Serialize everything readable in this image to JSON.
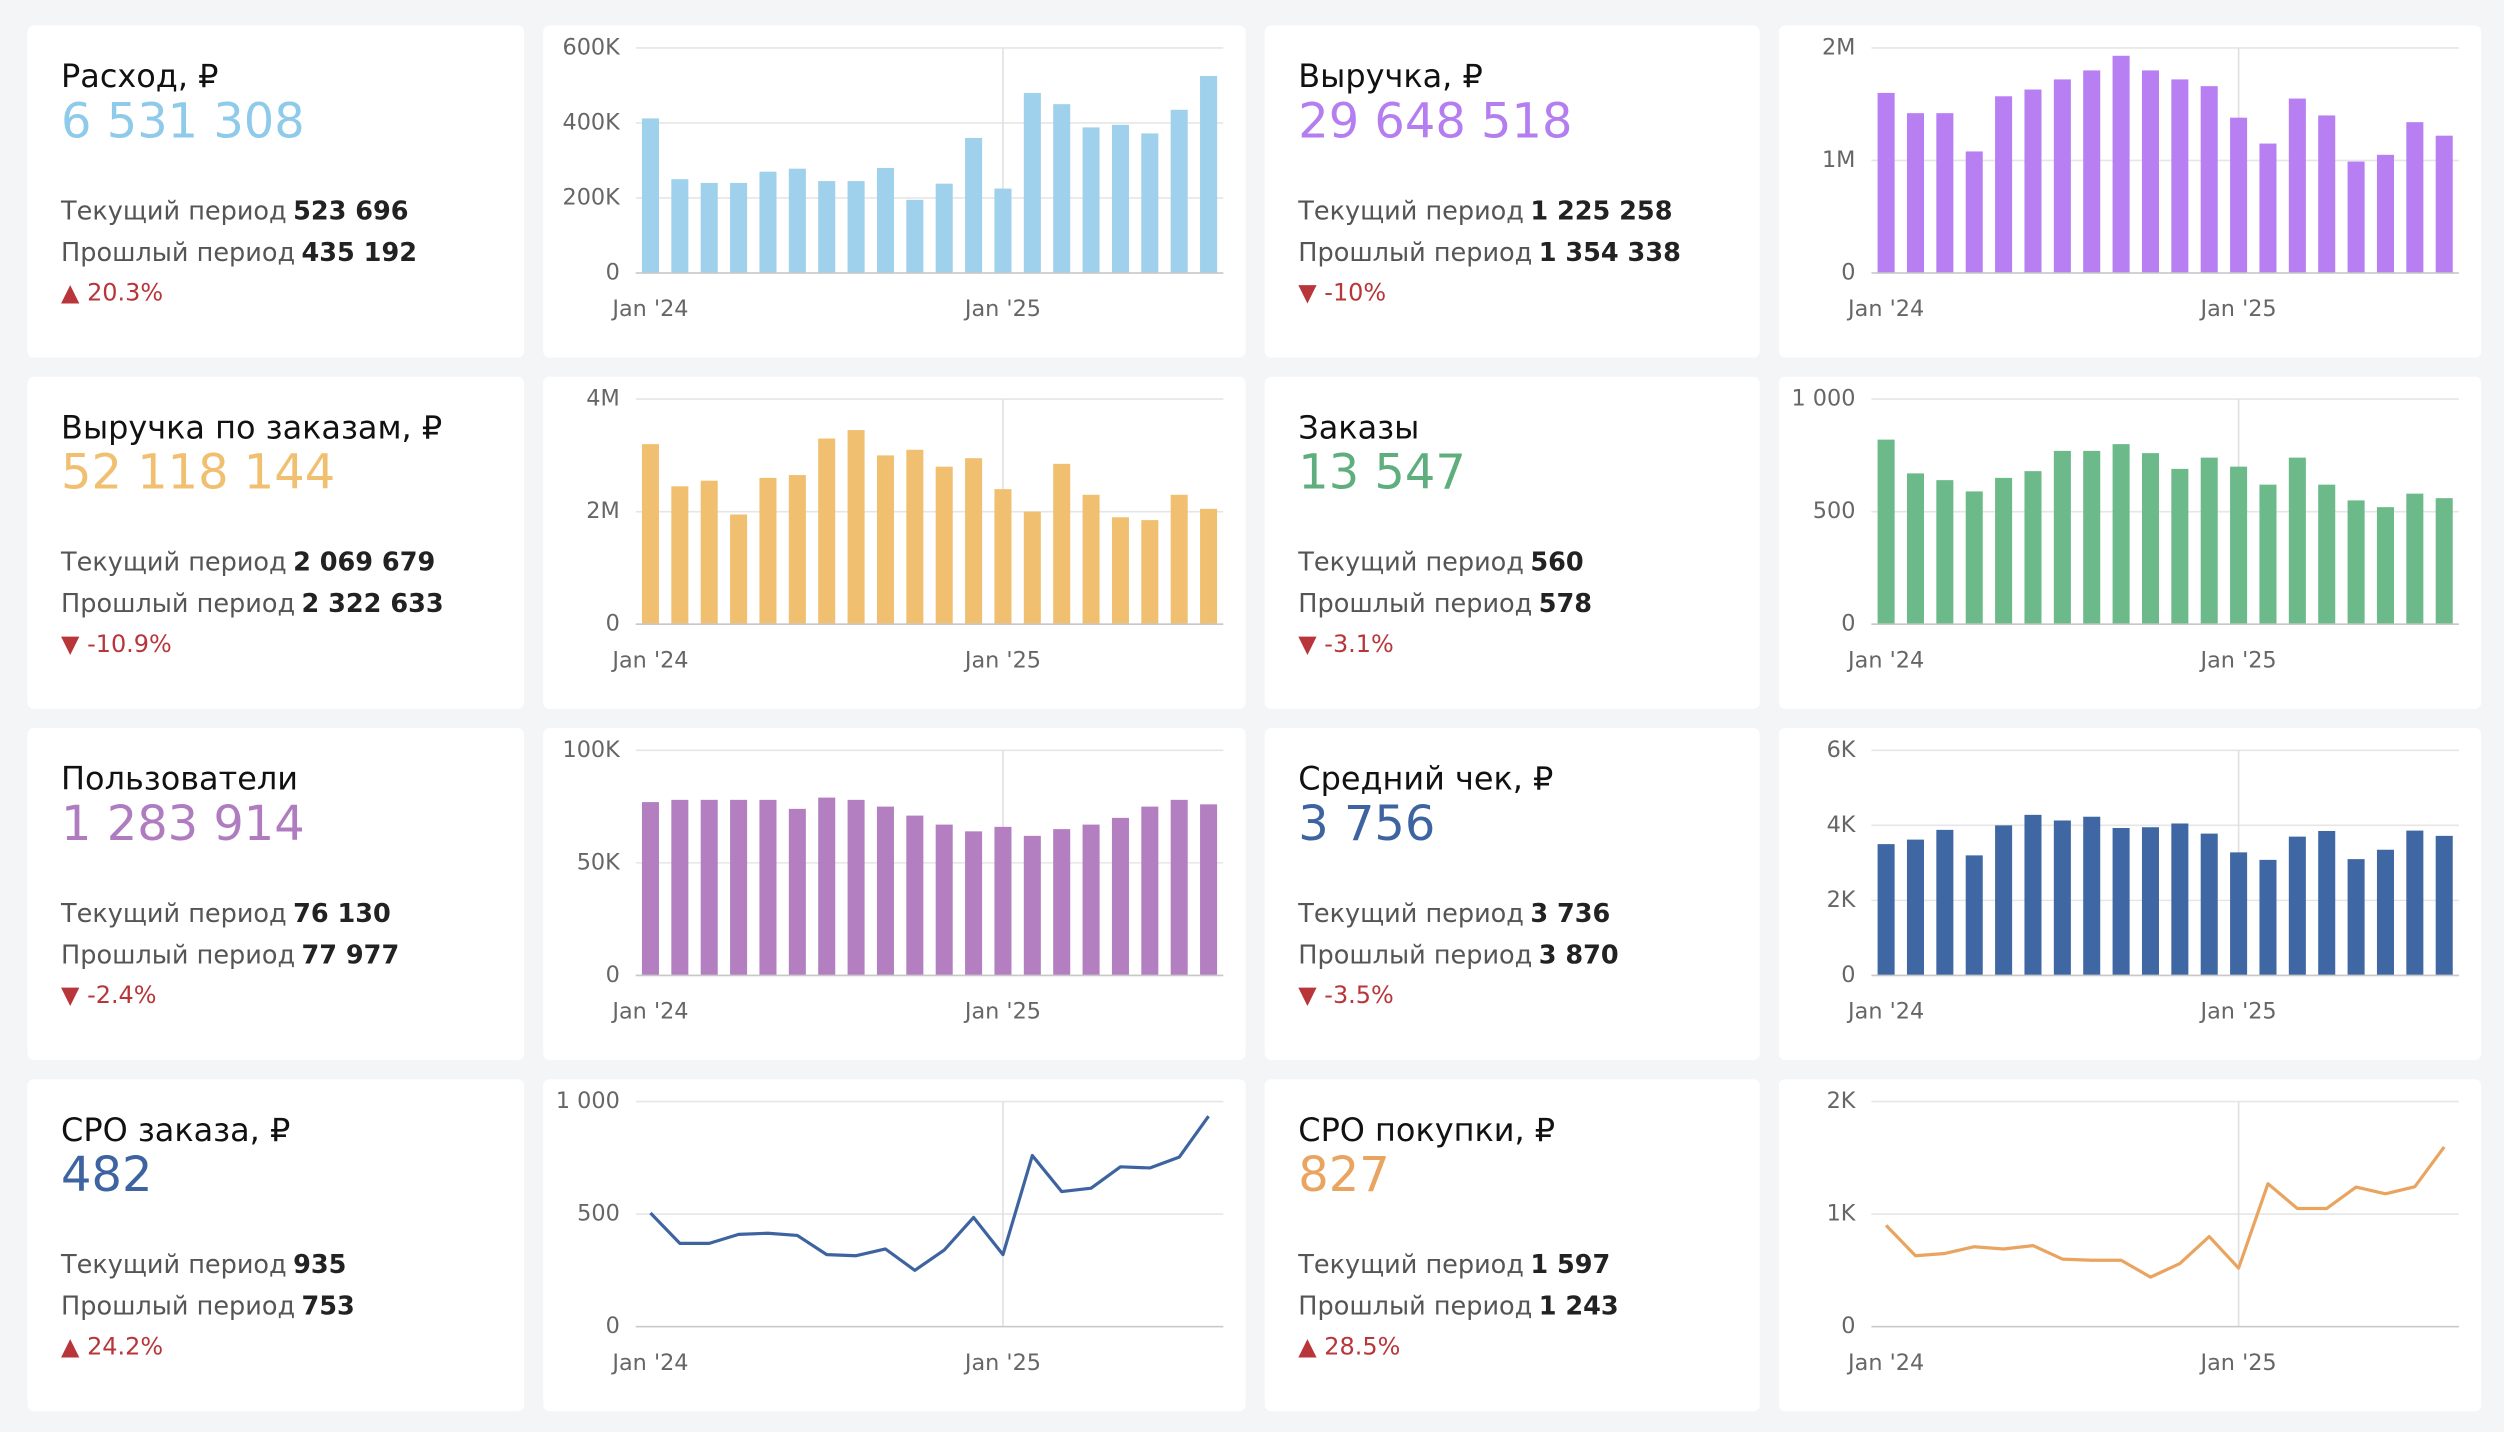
{
  "kpis": [
    {
      "title": "Расход, ₽",
      "value": "6 531 308",
      "color": "#8ecae9",
      "current_label": "Текущий период",
      "current": "523 696",
      "previous_label": "Прошлый период",
      "previous": "435 192",
      "change": "▲ 20.3%",
      "change_color": "#b8363a"
    },
    {
      "title": "Выручка, ₽",
      "value": "29 648 518",
      "color": "#b57ef0",
      "current_label": "Текущий период",
      "current": "1 225 258",
      "previous_label": "Прошлый период",
      "previous": "1 354 338",
      "change": "▼ -10%",
      "change_color": "#b8363a"
    },
    {
      "title": "Выручка по заказам, ₽",
      "value": "52 118 144",
      "color": "#f0c070",
      "current_label": "Текущий период",
      "current": "2 069 679",
      "previous_label": "Прошлый период",
      "previous": "2 322 633",
      "change": "▼ -10.9%",
      "change_color": "#b8363a"
    },
    {
      "title": "Заказы",
      "value": "13 547",
      "color": "#5fae7e",
      "current_label": "Текущий период",
      "current": "560",
      "previous_label": "Прошлый период",
      "previous": "578",
      "change": "▼ -3.1%",
      "change_color": "#b8363a"
    },
    {
      "title": "Пользователи",
      "value": "1 283 914",
      "color": "#b07cc0",
      "current_label": "Текущий период",
      "current": "76 130",
      "previous_label": "Прошлый период",
      "previous": "77 977",
      "change": "▼ -2.4%",
      "change_color": "#b8363a"
    },
    {
      "title": "Средний чек, ₽",
      "value": "3 756",
      "color": "#3d64a0",
      "current_label": "Текущий период",
      "current": "3 736",
      "previous_label": "Прошлый период",
      "previous": "3 870",
      "change": "▼ -3.5%",
      "change_color": "#b8363a"
    },
    {
      "title": "CPO заказа, ₽",
      "value": "482",
      "color": "#3d64a0",
      "current_label": "Текущий период",
      "current": "935",
      "previous_label": "Прошлый период",
      "previous": "753",
      "change": "▲ 24.2%",
      "change_color": "#b8363a"
    },
    {
      "title": "CPO покупки, ₽",
      "value": "827",
      "color": "#e9a45f",
      "current_label": "Текущий период",
      "current": "1 597",
      "previous_label": "Прошлый период",
      "previous": "1 243",
      "change": "▲ 28.5%",
      "change_color": "#b8363a"
    }
  ],
  "chart_data": [
    {
      "type": "bar",
      "color": "#9fd0ec",
      "categories": [
        "Jan '24",
        null,
        null,
        null,
        null,
        null,
        null,
        null,
        null,
        null,
        null,
        null,
        "Jan '25",
        null,
        null,
        null,
        null,
        null,
        null,
        null
      ],
      "values": [
        412000,
        250000,
        240000,
        240000,
        270000,
        278000,
        245000,
        245000,
        280000,
        195000,
        238000,
        360000,
        225000,
        480000,
        450000,
        388000,
        395000,
        372000,
        435000,
        525000
      ],
      "ylim": [
        0,
        600000
      ],
      "yticks": [
        0,
        {
          "value": 200000,
          "label": "200K"
        },
        {
          "value": 400000,
          "label": "400K"
        },
        {
          "value": 600000,
          "label": "600K"
        }
      ],
      "grid": true
    },
    {
      "type": "bar",
      "color": "#b77ff2",
      "categories": [
        "Jan '24",
        null,
        null,
        null,
        null,
        null,
        null,
        null,
        null,
        null,
        null,
        null,
        "Jan '25",
        null,
        null,
        null,
        null,
        null,
        null,
        null
      ],
      "values": [
        1600000,
        1420000,
        1420000,
        1080000,
        1570000,
        1630000,
        1720000,
        1800000,
        1930000,
        1800000,
        1720000,
        1660000,
        1380000,
        1150000,
        1550000,
        1400000,
        990000,
        1050000,
        1340000,
        1220000
      ],
      "ylim": [
        0,
        2000000
      ],
      "yticks": [
        0,
        {
          "value": 1000000,
          "label": "1M"
        },
        {
          "value": 2000000,
          "label": "2M"
        }
      ],
      "grid": true
    },
    {
      "type": "bar",
      "color": "#f0c070",
      "categories": [
        "Jan '24",
        null,
        null,
        null,
        null,
        null,
        null,
        null,
        null,
        null,
        null,
        null,
        "Jan '25",
        null,
        null,
        null,
        null,
        null,
        null,
        null
      ],
      "values": [
        3200000,
        2450000,
        2550000,
        1950000,
        2600000,
        2650000,
        3300000,
        3450000,
        3000000,
        3100000,
        2800000,
        2950000,
        2400000,
        2000000,
        2850000,
        2300000,
        1900000,
        1850000,
        2300000,
        2050000
      ],
      "ylim": [
        0,
        4000000
      ],
      "yticks": [
        0,
        {
          "value": 2000000,
          "label": "2M"
        },
        {
          "value": 4000000,
          "label": "4M"
        }
      ],
      "grid": true
    },
    {
      "type": "bar",
      "color": "#6cb98a",
      "categories": [
        "Jan '24",
        null,
        null,
        null,
        null,
        null,
        null,
        null,
        null,
        null,
        null,
        null,
        "Jan '25",
        null,
        null,
        null,
        null,
        null,
        null,
        null
      ],
      "values": [
        820,
        670,
        640,
        590,
        650,
        680,
        770,
        770,
        800,
        760,
        690,
        740,
        700,
        620,
        740,
        620,
        550,
        520,
        580,
        560
      ],
      "ylim": [
        0,
        1000
      ],
      "yticks": [
        0,
        500,
        {
          "value": 1000,
          "label": "1 000"
        }
      ],
      "grid": true
    },
    {
      "type": "bar",
      "color": "#b37fc0",
      "categories": [
        "Jan '24",
        null,
        null,
        null,
        null,
        null,
        null,
        null,
        null,
        null,
        null,
        null,
        "Jan '25",
        null,
        null,
        null,
        null,
        null,
        null,
        null
      ],
      "values": [
        77000,
        78000,
        78000,
        78000,
        78000,
        74000,
        79000,
        78000,
        75000,
        71000,
        67000,
        64000,
        66000,
        62000,
        65000,
        67000,
        70000,
        75000,
        78000,
        76000
      ],
      "ylim": [
        0,
        100000
      ],
      "yticks": [
        0,
        {
          "value": 50000,
          "label": "50K"
        },
        {
          "value": 100000,
          "label": "100K"
        }
      ],
      "grid": true
    },
    {
      "type": "bar",
      "color": "#3f67a3",
      "categories": [
        "Jan '24",
        null,
        null,
        null,
        null,
        null,
        null,
        null,
        null,
        null,
        null,
        null,
        "Jan '25",
        null,
        null,
        null,
        null,
        null,
        null,
        null
      ],
      "values": [
        3500,
        3620,
        3880,
        3200,
        4000,
        4280,
        4130,
        4230,
        3930,
        3950,
        4050,
        3780,
        3280,
        3080,
        3700,
        3850,
        3100,
        3350,
        3860,
        3720
      ],
      "ylim": [
        0,
        6000
      ],
      "yticks": [
        0,
        {
          "value": 2000,
          "label": "2K"
        },
        {
          "value": 4000,
          "label": "4K"
        },
        {
          "value": 6000,
          "label": "6K"
        }
      ],
      "grid": true
    },
    {
      "type": "line",
      "color": "#3d64a0",
      "categories": [
        "Jan '24",
        null,
        null,
        null,
        null,
        null,
        null,
        null,
        null,
        null,
        null,
        null,
        "Jan '25",
        null,
        null,
        null,
        null,
        null,
        null,
        null
      ],
      "values": [
        505,
        370,
        370,
        410,
        415,
        405,
        320,
        315,
        345,
        250,
        340,
        485,
        320,
        760,
        600,
        615,
        710,
        705,
        753,
        935
      ],
      "ylim": [
        0,
        1000
      ],
      "yticks": [
        0,
        500,
        {
          "value": 1000,
          "label": "1 000"
        }
      ],
      "grid": true
    },
    {
      "type": "line",
      "color": "#e9a45f",
      "categories": [
        "Jan '24",
        null,
        null,
        null,
        null,
        null,
        null,
        null,
        null,
        null,
        null,
        null,
        "Jan '25",
        null,
        null,
        null,
        null,
        null,
        null,
        null
      ],
      "values": [
        900,
        630,
        650,
        710,
        690,
        720,
        600,
        590,
        590,
        440,
        560,
        800,
        520,
        1270,
        1050,
        1050,
        1240,
        1180,
        1243,
        1597
      ],
      "ylim": [
        0,
        2000
      ],
      "yticks": [
        0,
        {
          "value": 1000,
          "label": "1K"
        },
        {
          "value": 2000,
          "label": "2K"
        }
      ],
      "grid": true
    }
  ]
}
